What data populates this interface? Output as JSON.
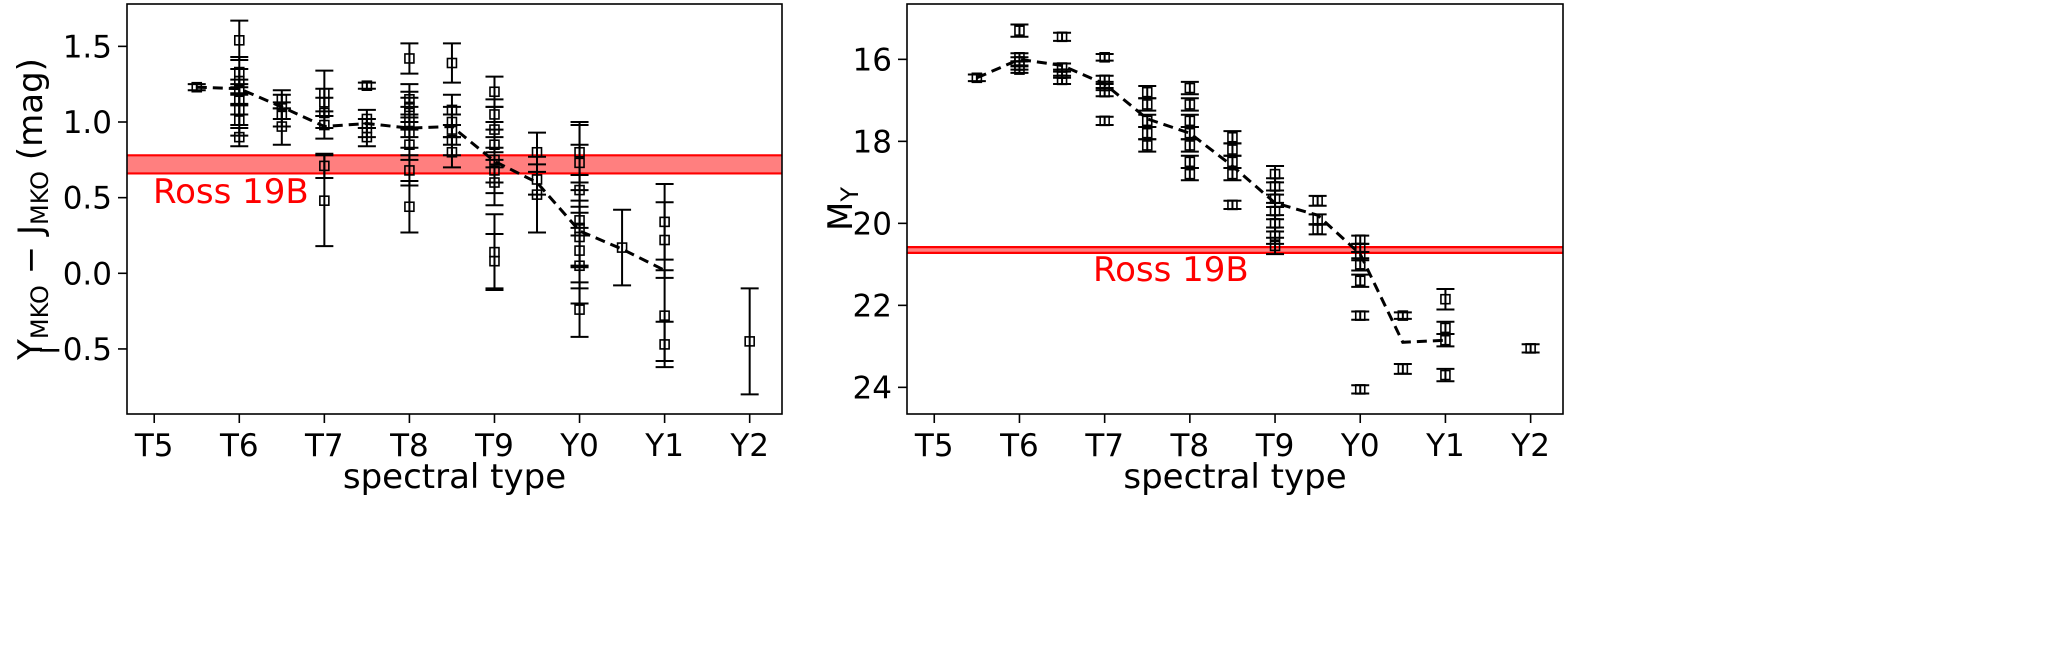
{
  "chart_data": [
    {
      "type": "scatter",
      "xlabel": "spectral type",
      "ylabel_parts": {
        "lead": "Y",
        "lead_sub": "MKO",
        "mid": " − J",
        "mid_sub": "MKO",
        "tail": " (mag)"
      },
      "xticks": [
        "T5",
        "T6",
        "T7",
        "T8",
        "T9",
        "Y0",
        "Y1",
        "Y2"
      ],
      "xlim": [
        4.68,
        12.38
      ],
      "ylim": [
        -0.93,
        1.78
      ],
      "yticks": [
        -0.5,
        0.0,
        0.5,
        1.0,
        1.5
      ],
      "ytick_labels": [
        "−0.5",
        "0.0",
        "0.5",
        "1.0",
        "1.5"
      ],
      "points": [
        {
          "x": 5.5,
          "y": 1.23,
          "e": 0.02
        },
        {
          "x": 6.0,
          "y": 1.54,
          "e": 0.13
        },
        {
          "x": 6.0,
          "y": 1.33,
          "e": 0.1
        },
        {
          "x": 6.0,
          "y": 1.27,
          "e": 0.08
        },
        {
          "x": 6.0,
          "y": 1.2,
          "e": 0.08
        },
        {
          "x": 6.0,
          "y": 1.15,
          "e": 0.1
        },
        {
          "x": 6.0,
          "y": 1.08,
          "e": 0.1
        },
        {
          "x": 6.0,
          "y": 1.01,
          "e": 0.1
        },
        {
          "x": 6.0,
          "y": 0.9,
          "e": 0.06
        },
        {
          "x": 6.5,
          "y": 1.15,
          "e": 0.06
        },
        {
          "x": 6.5,
          "y": 1.1,
          "e": 0.08
        },
        {
          "x": 6.5,
          "y": 1.05,
          "e": 0.08
        },
        {
          "x": 6.5,
          "y": 0.97,
          "e": 0.12
        },
        {
          "x": 7.0,
          "y": 1.19,
          "e": 0.15
        },
        {
          "x": 7.0,
          "y": 1.13,
          "e": 0.09
        },
        {
          "x": 7.0,
          "y": 1.06,
          "e": 0.1
        },
        {
          "x": 7.0,
          "y": 0.98,
          "e": 0.09
        },
        {
          "x": 7.0,
          "y": 0.71,
          "e": 0.08
        },
        {
          "x": 7.0,
          "y": 0.48,
          "e": 0.3
        },
        {
          "x": 7.5,
          "y": 1.24,
          "e": 0.02
        },
        {
          "x": 7.5,
          "y": 1.02,
          "e": 0.06
        },
        {
          "x": 7.5,
          "y": 0.96,
          "e": 0.06
        },
        {
          "x": 7.5,
          "y": 0.9,
          "e": 0.06
        },
        {
          "x": 8.0,
          "y": 1.42,
          "e": 0.1
        },
        {
          "x": 8.0,
          "y": 1.15,
          "e": 0.1
        },
        {
          "x": 8.0,
          "y": 1.1,
          "e": 0.1
        },
        {
          "x": 8.0,
          "y": 1.06,
          "e": 0.1
        },
        {
          "x": 8.0,
          "y": 1.0,
          "e": 0.1
        },
        {
          "x": 8.0,
          "y": 0.93,
          "e": 0.1
        },
        {
          "x": 8.0,
          "y": 0.85,
          "e": 0.1
        },
        {
          "x": 8.0,
          "y": 0.68,
          "e": 0.1
        },
        {
          "x": 8.0,
          "y": 0.44,
          "e": 0.17
        },
        {
          "x": 8.5,
          "y": 1.39,
          "e": 0.13
        },
        {
          "x": 8.5,
          "y": 1.08,
          "e": 0.1
        },
        {
          "x": 8.5,
          "y": 1.0,
          "e": 0.1
        },
        {
          "x": 8.5,
          "y": 0.95,
          "e": 0.1
        },
        {
          "x": 8.5,
          "y": 0.88,
          "e": 0.1
        },
        {
          "x": 8.5,
          "y": 0.8,
          "e": 0.1
        },
        {
          "x": 9.0,
          "y": 1.2,
          "e": 0.1
        },
        {
          "x": 9.0,
          "y": 1.05,
          "e": 0.1
        },
        {
          "x": 9.0,
          "y": 0.95,
          "e": 0.15
        },
        {
          "x": 9.0,
          "y": 0.85,
          "e": 0.15
        },
        {
          "x": 9.0,
          "y": 0.75,
          "e": 0.15
        },
        {
          "x": 9.0,
          "y": 0.68,
          "e": 0.15
        },
        {
          "x": 9.0,
          "y": 0.6,
          "e": 0.15
        },
        {
          "x": 9.0,
          "y": 0.14,
          "e": 0.25
        },
        {
          "x": 9.0,
          "y": 0.08,
          "e": 0.18
        },
        {
          "x": 9.5,
          "y": 0.8,
          "e": 0.13
        },
        {
          "x": 9.5,
          "y": 0.62,
          "e": 0.1
        },
        {
          "x": 9.5,
          "y": 0.52,
          "e": 0.25
        },
        {
          "x": 10.0,
          "y": 0.8,
          "e": 0.2
        },
        {
          "x": 10.0,
          "y": 0.73,
          "e": 0.25
        },
        {
          "x": 10.0,
          "y": 0.55,
          "e": 0.3
        },
        {
          "x": 10.0,
          "y": 0.35,
          "e": 0.3
        },
        {
          "x": 10.0,
          "y": 0.3,
          "e": 0.25
        },
        {
          "x": 10.0,
          "y": 0.24,
          "e": 0.2
        },
        {
          "x": 10.0,
          "y": 0.15,
          "e": 0.25
        },
        {
          "x": 10.0,
          "y": 0.05,
          "e": 0.25
        },
        {
          "x": 10.0,
          "y": -0.24,
          "e": 0.18
        },
        {
          "x": 10.5,
          "y": 0.17,
          "e": 0.25
        },
        {
          "x": 11.0,
          "y": 0.34,
          "e": 0.25
        },
        {
          "x": 11.0,
          "y": 0.22,
          "e": 0.25
        },
        {
          "x": 11.0,
          "y": -0.28,
          "e": 0.3
        },
        {
          "x": 11.0,
          "y": -0.47,
          "e": 0.15
        },
        {
          "x": 12.0,
          "y": -0.45,
          "e": 0.35
        }
      ],
      "trend": {
        "x": [
          5.5,
          6.0,
          6.5,
          7.0,
          7.5,
          8.0,
          8.5,
          9.0,
          9.5,
          10.0,
          10.5,
          11.0
        ],
        "y": [
          1.23,
          1.22,
          1.1,
          0.97,
          0.99,
          0.96,
          0.97,
          0.74,
          0.6,
          0.28,
          0.16,
          0.02
        ]
      },
      "band": {
        "label": "Ross 19B",
        "lo": 0.66,
        "hi": 0.78,
        "color": "#ff0000"
      }
    },
    {
      "type": "scatter",
      "xlabel": "spectral type",
      "ylabel_parts": {
        "lead": "M",
        "lead_sub": "Y"
      },
      "xticks": [
        "T5",
        "T6",
        "T7",
        "T8",
        "T9",
        "Y0",
        "Y1",
        "Y2"
      ],
      "xlim": [
        4.68,
        12.38
      ],
      "ylim": [
        24.65,
        14.65
      ],
      "yticks": [
        16,
        18,
        20,
        22,
        24
      ],
      "ytick_labels": [
        "16",
        "18",
        "20",
        "22",
        "24"
      ],
      "points": [
        {
          "x": 5.5,
          "y": 16.45,
          "e": 0.08
        },
        {
          "x": 6.0,
          "y": 15.3,
          "e": 0.15
        },
        {
          "x": 6.0,
          "y": 15.95,
          "e": 0.1
        },
        {
          "x": 6.0,
          "y": 16.05,
          "e": 0.1
        },
        {
          "x": 6.0,
          "y": 16.15,
          "e": 0.1
        },
        {
          "x": 6.0,
          "y": 16.25,
          "e": 0.08
        },
        {
          "x": 6.5,
          "y": 15.45,
          "e": 0.1
        },
        {
          "x": 6.5,
          "y": 16.2,
          "e": 0.1
        },
        {
          "x": 6.5,
          "y": 16.35,
          "e": 0.1
        },
        {
          "x": 6.5,
          "y": 16.5,
          "e": 0.1
        },
        {
          "x": 7.0,
          "y": 15.95,
          "e": 0.08
        },
        {
          "x": 7.0,
          "y": 16.5,
          "e": 0.1
        },
        {
          "x": 7.0,
          "y": 16.65,
          "e": 0.1
        },
        {
          "x": 7.0,
          "y": 16.8,
          "e": 0.1
        },
        {
          "x": 7.0,
          "y": 17.5,
          "e": 0.1
        },
        {
          "x": 7.5,
          "y": 16.8,
          "e": 0.15
        },
        {
          "x": 7.5,
          "y": 17.1,
          "e": 0.15
        },
        {
          "x": 7.5,
          "y": 17.5,
          "e": 0.15
        },
        {
          "x": 7.5,
          "y": 17.8,
          "e": 0.15
        },
        {
          "x": 7.5,
          "y": 18.1,
          "e": 0.15
        },
        {
          "x": 8.0,
          "y": 16.7,
          "e": 0.15
        },
        {
          "x": 8.0,
          "y": 17.1,
          "e": 0.15
        },
        {
          "x": 8.0,
          "y": 17.5,
          "e": 0.15
        },
        {
          "x": 8.0,
          "y": 17.8,
          "e": 0.15
        },
        {
          "x": 8.0,
          "y": 18.1,
          "e": 0.15
        },
        {
          "x": 8.0,
          "y": 18.5,
          "e": 0.15
        },
        {
          "x": 8.0,
          "y": 18.8,
          "e": 0.15
        },
        {
          "x": 8.5,
          "y": 17.9,
          "e": 0.15
        },
        {
          "x": 8.5,
          "y": 18.2,
          "e": 0.15
        },
        {
          "x": 8.5,
          "y": 18.5,
          "e": 0.15
        },
        {
          "x": 8.5,
          "y": 18.8,
          "e": 0.15
        },
        {
          "x": 8.5,
          "y": 19.55,
          "e": 0.1
        },
        {
          "x": 9.0,
          "y": 18.8,
          "e": 0.2
        },
        {
          "x": 9.0,
          "y": 19.1,
          "e": 0.2
        },
        {
          "x": 9.0,
          "y": 19.4,
          "e": 0.2
        },
        {
          "x": 9.0,
          "y": 19.7,
          "e": 0.2
        },
        {
          "x": 9.0,
          "y": 20.0,
          "e": 0.2
        },
        {
          "x": 9.0,
          "y": 20.3,
          "e": 0.2
        },
        {
          "x": 9.0,
          "y": 20.55,
          "e": 0.2
        },
        {
          "x": 9.5,
          "y": 19.45,
          "e": 0.12
        },
        {
          "x": 9.5,
          "y": 19.9,
          "e": 0.12
        },
        {
          "x": 9.5,
          "y": 20.15,
          "e": 0.12
        },
        {
          "x": 10.0,
          "y": 20.4,
          "e": 0.1
        },
        {
          "x": 10.0,
          "y": 20.6,
          "e": 0.1
        },
        {
          "x": 10.0,
          "y": 20.8,
          "e": 0.1
        },
        {
          "x": 10.0,
          "y": 21.0,
          "e": 0.15
        },
        {
          "x": 10.0,
          "y": 21.4,
          "e": 0.15
        },
        {
          "x": 10.0,
          "y": 22.25,
          "e": 0.1
        },
        {
          "x": 10.0,
          "y": 24.05,
          "e": 0.1
        },
        {
          "x": 10.5,
          "y": 22.25,
          "e": 0.08
        },
        {
          "x": 10.5,
          "y": 23.55,
          "e": 0.12
        },
        {
          "x": 11.0,
          "y": 21.85,
          "e": 0.25
        },
        {
          "x": 11.0,
          "y": 22.55,
          "e": 0.15
        },
        {
          "x": 11.0,
          "y": 22.85,
          "e": 0.15
        },
        {
          "x": 11.0,
          "y": 23.7,
          "e": 0.15
        },
        {
          "x": 12.0,
          "y": 23.05,
          "e": 0.1
        }
      ],
      "trend": {
        "x": [
          5.5,
          6.0,
          6.5,
          7.0,
          7.5,
          8.0,
          8.5,
          9.0,
          9.5,
          10.0,
          10.5,
          11.0
        ],
        "y": [
          16.45,
          16.0,
          16.15,
          16.6,
          17.45,
          17.8,
          18.6,
          19.5,
          19.8,
          20.75,
          22.9,
          22.85
        ]
      },
      "band": {
        "label": "Ross 19B",
        "lo": 20.58,
        "hi": 20.72,
        "color": "#ff0000"
      }
    }
  ]
}
